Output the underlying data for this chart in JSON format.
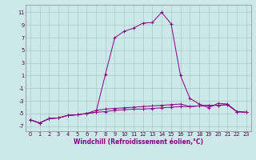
{
  "xlabel": "Windchill (Refroidissement éolien,°C)",
  "bg_color": "#cce8e8",
  "grid_color": "#aacccc",
  "line_color": "#880088",
  "x_ticks": [
    0,
    1,
    2,
    3,
    4,
    5,
    6,
    7,
    8,
    9,
    10,
    11,
    12,
    13,
    14,
    15,
    16,
    17,
    18,
    19,
    20,
    21,
    22,
    23
  ],
  "y_ticks": [
    -7,
    -5,
    -3,
    -1,
    1,
    3,
    5,
    7,
    9,
    11
  ],
  "ylim": [
    -7.8,
    12.2
  ],
  "xlim": [
    -0.5,
    23.5
  ],
  "series": [
    [
      -6.0,
      -6.5,
      -5.8,
      -5.7,
      -5.3,
      -5.2,
      -5.0,
      -4.8,
      -4.7,
      -4.5,
      -4.4,
      -4.3,
      -4.3,
      -4.2,
      -4.1,
      -4.0,
      -3.9,
      -3.9,
      -3.8,
      -3.7,
      -3.7,
      -3.6,
      -4.7,
      -4.8
    ],
    [
      -6.0,
      -6.5,
      -5.8,
      -5.7,
      -5.3,
      -5.2,
      -5.0,
      -4.8,
      1.2,
      7.0,
      8.0,
      8.5,
      9.3,
      9.4,
      11.0,
      9.2,
      1.0,
      -2.6,
      -3.5,
      -4.1,
      -3.4,
      -3.5,
      -4.7,
      -4.8
    ],
    [
      -6.0,
      -6.5,
      -5.8,
      -5.7,
      -5.3,
      -5.2,
      -5.0,
      -4.5,
      -4.3,
      -4.2,
      -4.1,
      -4.0,
      -3.9,
      -3.8,
      -3.7,
      -3.6,
      -3.5,
      -3.9,
      -3.8,
      -3.7,
      -3.7,
      -3.6,
      -4.7,
      -4.8
    ]
  ],
  "tick_fontsize": 4.8,
  "xlabel_fontsize": 5.5
}
